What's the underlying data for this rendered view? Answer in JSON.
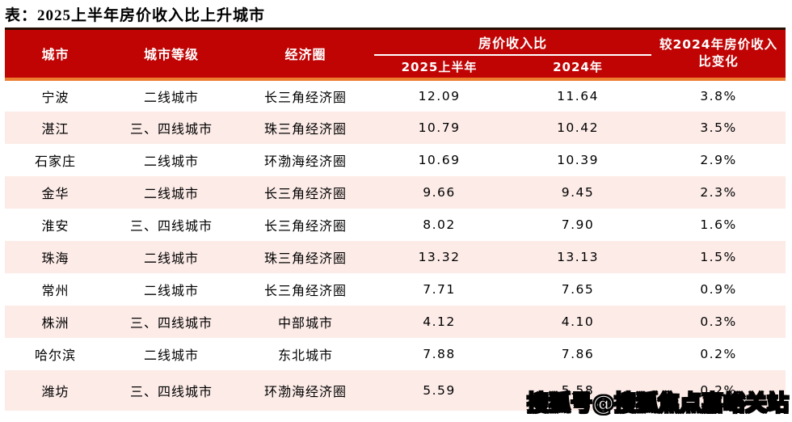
{
  "title": "表：2025上半年房价收入比上升城市",
  "colors": {
    "header_bg": "#c00404",
    "header_text": "#ffffff",
    "header_top_border": "#261003",
    "header_bottom_rule": "#ed7d31",
    "group_underline": "#ffffff",
    "row_alt_bg": "#fcebe7",
    "body_text": "#000000"
  },
  "table": {
    "header": {
      "city": "城市",
      "tier": "城市等级",
      "circle": "经济圈",
      "group": "房价收入比",
      "sub_2025": "2025上半年",
      "sub_2024": "2024年",
      "change_line1": "较2024年房价收入",
      "change_line2": "比变化"
    },
    "rows": [
      {
        "city": "宁波",
        "tier": "二线城市",
        "circle": "长三角经济圈",
        "v2025": "12.09",
        "v2024": "11.64",
        "change": "3.8%"
      },
      {
        "city": "湛江",
        "tier": "三、四线城市",
        "circle": "珠三角经济圈",
        "v2025": "10.79",
        "v2024": "10.42",
        "change": "3.5%"
      },
      {
        "city": "石家庄",
        "tier": "二线城市",
        "circle": "环渤海经济圈",
        "v2025": "10.69",
        "v2024": "10.39",
        "change": "2.9%"
      },
      {
        "city": "金华",
        "tier": "二线城市",
        "circle": "长三角经济圈",
        "v2025": "9.66",
        "v2024": "9.45",
        "change": "2.3%"
      },
      {
        "city": "淮安",
        "tier": "三、四线城市",
        "circle": "长三角经济圈",
        "v2025": "8.02",
        "v2024": "7.90",
        "change": "1.6%"
      },
      {
        "city": "珠海",
        "tier": "二线城市",
        "circle": "珠三角经济圈",
        "v2025": "13.32",
        "v2024": "13.13",
        "change": "1.5%"
      },
      {
        "city": "常州",
        "tier": "二线城市",
        "circle": "长三角经济圈",
        "v2025": "7.71",
        "v2024": "7.65",
        "change": "0.9%"
      },
      {
        "city": "株洲",
        "tier": "三、四线城市",
        "circle": "中部城市",
        "v2025": "4.12",
        "v2024": "4.10",
        "change": "0.3%"
      },
      {
        "city": "哈尔滨",
        "tier": "二线城市",
        "circle": "东北城市",
        "v2025": "7.88",
        "v2024": "7.86",
        "change": "0.2%"
      },
      {
        "city": "潍坊",
        "tier": "三、四线城市",
        "circle": "环渤海经济圈",
        "v2025": "5.59",
        "v2024": "5.58",
        "change": "0.2%"
      }
    ]
  },
  "watermark": "搜狐号@搜狐焦点嘉峪关站",
  "chart_data": {
    "type": "table",
    "title": "表：2025上半年房价收入比上升城市",
    "columns": [
      "城市",
      "城市等级",
      "经济圈",
      "房价收入比 2025上半年",
      "房价收入比 2024年",
      "较2024年房价收入比变化"
    ],
    "rows": [
      [
        "宁波",
        "二线城市",
        "长三角经济圈",
        12.09,
        11.64,
        "3.8%"
      ],
      [
        "湛江",
        "三、四线城市",
        "珠三角经济圈",
        10.79,
        10.42,
        "3.5%"
      ],
      [
        "石家庄",
        "二线城市",
        "环渤海经济圈",
        10.69,
        10.39,
        "2.9%"
      ],
      [
        "金华",
        "二线城市",
        "长三角经济圈",
        9.66,
        9.45,
        "2.3%"
      ],
      [
        "淮安",
        "三、四线城市",
        "长三角经济圈",
        8.02,
        7.9,
        "1.6%"
      ],
      [
        "珠海",
        "二线城市",
        "珠三角经济圈",
        13.32,
        13.13,
        "1.5%"
      ],
      [
        "常州",
        "二线城市",
        "长三角经济圈",
        7.71,
        7.65,
        "0.9%"
      ],
      [
        "株洲",
        "三、四线城市",
        "中部城市",
        4.12,
        4.1,
        "0.3%"
      ],
      [
        "哈尔滨",
        "二线城市",
        "东北城市",
        7.88,
        7.86,
        "0.2%"
      ],
      [
        "潍坊",
        "三、四线城市",
        "环渤海经济圈",
        5.59,
        5.58,
        "0.2%"
      ]
    ]
  }
}
